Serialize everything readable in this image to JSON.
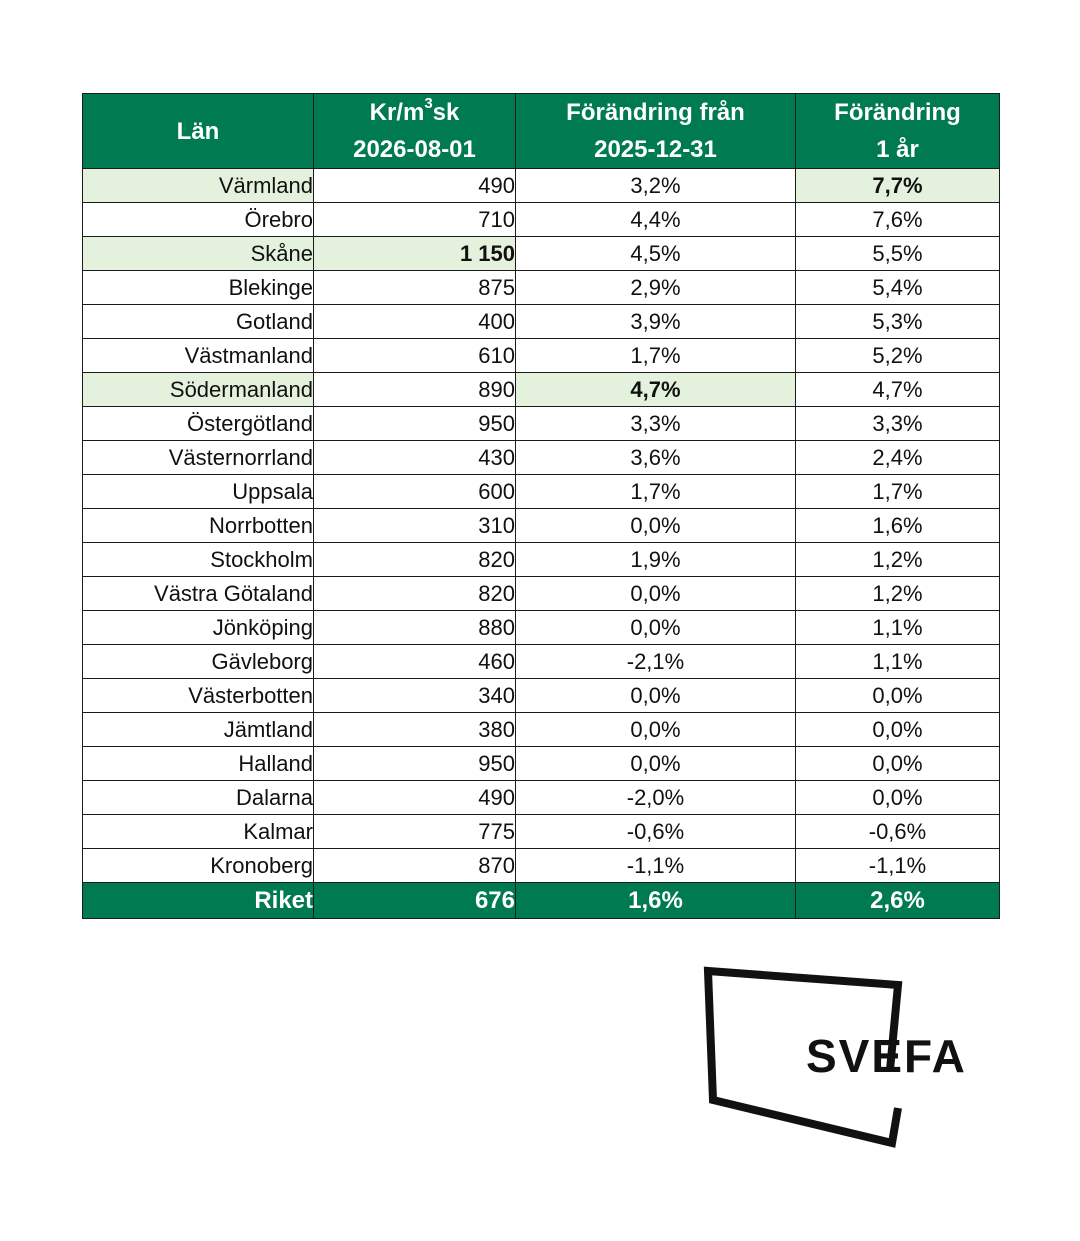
{
  "header": {
    "col0": "Län",
    "col1_unit": "Kr/m",
    "col1_sup": "3",
    "col1_unit_rest": "sk",
    "col1_date": "2026-08-01",
    "col2_line1": "Förändring från",
    "col2_line2": "2025-12-31",
    "col3_line1": "Förändring",
    "col3_line2": "1 år"
  },
  "rows": [
    {
      "lan": "Värmland",
      "pris": "490",
      "andring_fran": "3,2%",
      "andring_ar": "7,7%"
    },
    {
      "lan": "Örebro",
      "pris": "710",
      "andring_fran": "4,4%",
      "andring_ar": "7,6%"
    },
    {
      "lan": "Skåne",
      "pris": "1 150",
      "andring_fran": "4,5%",
      "andring_ar": "5,5%"
    },
    {
      "lan": "Blekinge",
      "pris": "875",
      "andring_fran": "2,9%",
      "andring_ar": "5,4%"
    },
    {
      "lan": "Gotland",
      "pris": "400",
      "andring_fran": "3,9%",
      "andring_ar": "5,3%"
    },
    {
      "lan": "Västmanland",
      "pris": "610",
      "andring_fran": "1,7%",
      "andring_ar": "5,2%"
    },
    {
      "lan": "Södermanland",
      "pris": "890",
      "andring_fran": "4,7%",
      "andring_ar": "4,7%"
    },
    {
      "lan": "Östergötland",
      "pris": "950",
      "andring_fran": "3,3%",
      "andring_ar": "3,3%"
    },
    {
      "lan": "Västernorrland",
      "pris": "430",
      "andring_fran": "3,6%",
      "andring_ar": "2,4%"
    },
    {
      "lan": "Uppsala",
      "pris": "600",
      "andring_fran": "1,7%",
      "andring_ar": "1,7%"
    },
    {
      "lan": "Norrbotten",
      "pris": "310",
      "andring_fran": "0,0%",
      "andring_ar": "1,6%"
    },
    {
      "lan": "Stockholm",
      "pris": "820",
      "andring_fran": "1,9%",
      "andring_ar": "1,2%"
    },
    {
      "lan": "Västra Götaland",
      "pris": "820",
      "andring_fran": "0,0%",
      "andring_ar": "1,2%"
    },
    {
      "lan": "Jönköping",
      "pris": "880",
      "andring_fran": "0,0%",
      "andring_ar": "1,1%"
    },
    {
      "lan": "Gävleborg",
      "pris": "460",
      "andring_fran": "-2,1%",
      "andring_ar": "1,1%"
    },
    {
      "lan": "Västerbotten",
      "pris": "340",
      "andring_fran": "0,0%",
      "andring_ar": "0,0%"
    },
    {
      "lan": "Jämtland",
      "pris": "380",
      "andring_fran": "0,0%",
      "andring_ar": "0,0%"
    },
    {
      "lan": "Halland",
      "pris": "950",
      "andring_fran": "0,0%",
      "andring_ar": "0,0%"
    },
    {
      "lan": "Dalarna",
      "pris": "490",
      "andring_fran": "-2,0%",
      "andring_ar": "0,0%"
    },
    {
      "lan": "Kalmar",
      "pris": "775",
      "andring_fran": "-0,6%",
      "andring_ar": "-0,6%"
    },
    {
      "lan": "Kronoberg",
      "pris": "870",
      "andring_fran": "-1,1%",
      "andring_ar": "-1,1%"
    }
  ],
  "total": {
    "lan": "Riket",
    "pris": "676",
    "andring_fran": "1,6%",
    "andring_ar": "2,6%"
  },
  "logo": {
    "text": "SVEFA"
  },
  "colors": {
    "header": "#007a50",
    "highlight": "#e3f1dd",
    "logo": "#111111"
  }
}
